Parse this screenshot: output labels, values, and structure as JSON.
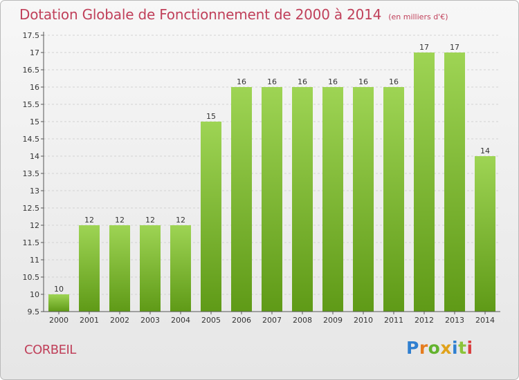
{
  "page": {
    "title": "Dotation Globale de Fonctionnement de 2000 à 2014",
    "subtitle": "(en milliers d'€)",
    "location": "CORBEIL",
    "logo": {
      "text": "Proxiti",
      "colors": [
        "#2f7fd0",
        "#e57c1e",
        "#63b32e",
        "#e0a21b",
        "#2f7fd0",
        "#8cc43a",
        "#d94040"
      ]
    }
  },
  "chart_data": {
    "type": "bar",
    "categories": [
      "2000",
      "2001",
      "2002",
      "2003",
      "2004",
      "2005",
      "2006",
      "2007",
      "2008",
      "2009",
      "2010",
      "2011",
      "2012",
      "2013",
      "2014"
    ],
    "values": [
      10,
      12,
      12,
      12,
      12,
      15,
      16,
      16,
      16,
      16,
      16,
      16,
      17,
      17,
      14
    ],
    "data_labels": [
      "10",
      "12",
      "12",
      "12",
      "12",
      "15",
      "16",
      "16",
      "16",
      "16",
      "16",
      "16",
      "17",
      "17",
      "14"
    ],
    "yticks": [
      "9.5",
      "10",
      "10.5",
      "11",
      "11.5",
      "12",
      "12.5",
      "13",
      "13.5",
      "14",
      "14.5",
      "15",
      "15.5",
      "16",
      "16.5",
      "17",
      "17.5"
    ],
    "ylim": [
      9.5,
      17.5
    ],
    "grid": true,
    "bar_color": "#7fbd2c"
  }
}
